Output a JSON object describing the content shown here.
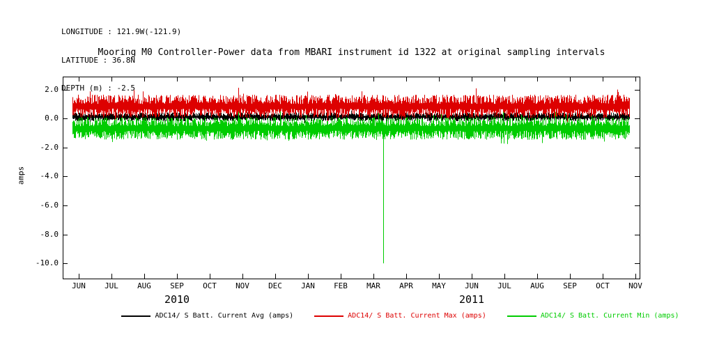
{
  "header": {
    "longitude": "LONGITUDE : 121.9W(-121.9)",
    "latitude": "LATITUDE : 36.8N",
    "depth": "DEPTH (m) : -2.5"
  },
  "title": "Mooring M0 Controller-Power data from MBARI instrument id 1322 at original sampling intervals",
  "chart_data": {
    "type": "line",
    "title": "Mooring M0 Controller-Power data from MBARI instrument id 1322 at original sampling intervals",
    "ylabel": "amps",
    "background": "#ffffff",
    "axis_color": "#000000",
    "grid": false,
    "legend_position": "bottom",
    "ylim": [
      -11.05,
      2.9
    ],
    "yticks": [
      {
        "value": 2.0,
        "label": "2.0"
      },
      {
        "value": 0.0,
        "label": "0.0"
      },
      {
        "value": -2.0,
        "label": "-2.0"
      },
      {
        "value": -4.0,
        "label": "-4.0"
      },
      {
        "value": -6.0,
        "label": "-6.0"
      },
      {
        "value": -8.0,
        "label": "-8.0"
      },
      {
        "value": -10.0,
        "label": "-10.0"
      }
    ],
    "x_tick_labels": [
      "JUN",
      "JUL",
      "AUG",
      "SEP",
      "OCT",
      "NOV",
      "DEC",
      "JAN",
      "FEB",
      "MAR",
      "APR",
      "MAY",
      "JUN",
      "JUL",
      "AUG",
      "SEP",
      "OCT",
      "NOV"
    ],
    "years": [
      {
        "label": "2010",
        "month_index": 3
      },
      {
        "label": "2011",
        "month_index": 12
      }
    ],
    "data_start_month_index": -0.2,
    "data_end_month_index": 16.8,
    "series": [
      {
        "name": "ADC14/ S Batt. Current Avg (amps)",
        "color": "#000000",
        "center": 0.12,
        "spread": 0.3
      },
      {
        "name": "ADC14/ S Batt. Current Max (amps)",
        "color": "#dd0000",
        "center": 0.85,
        "spread": 0.8
      },
      {
        "name": "ADC14/ S Batt. Current Min (amps)",
        "color": "#00cc00",
        "center": -0.68,
        "spread": 0.78
      }
    ],
    "anomaly": {
      "series": "ADC14/ S Batt. Current Min (amps)",
      "month_index": 9.3,
      "value": -10.0
    }
  }
}
